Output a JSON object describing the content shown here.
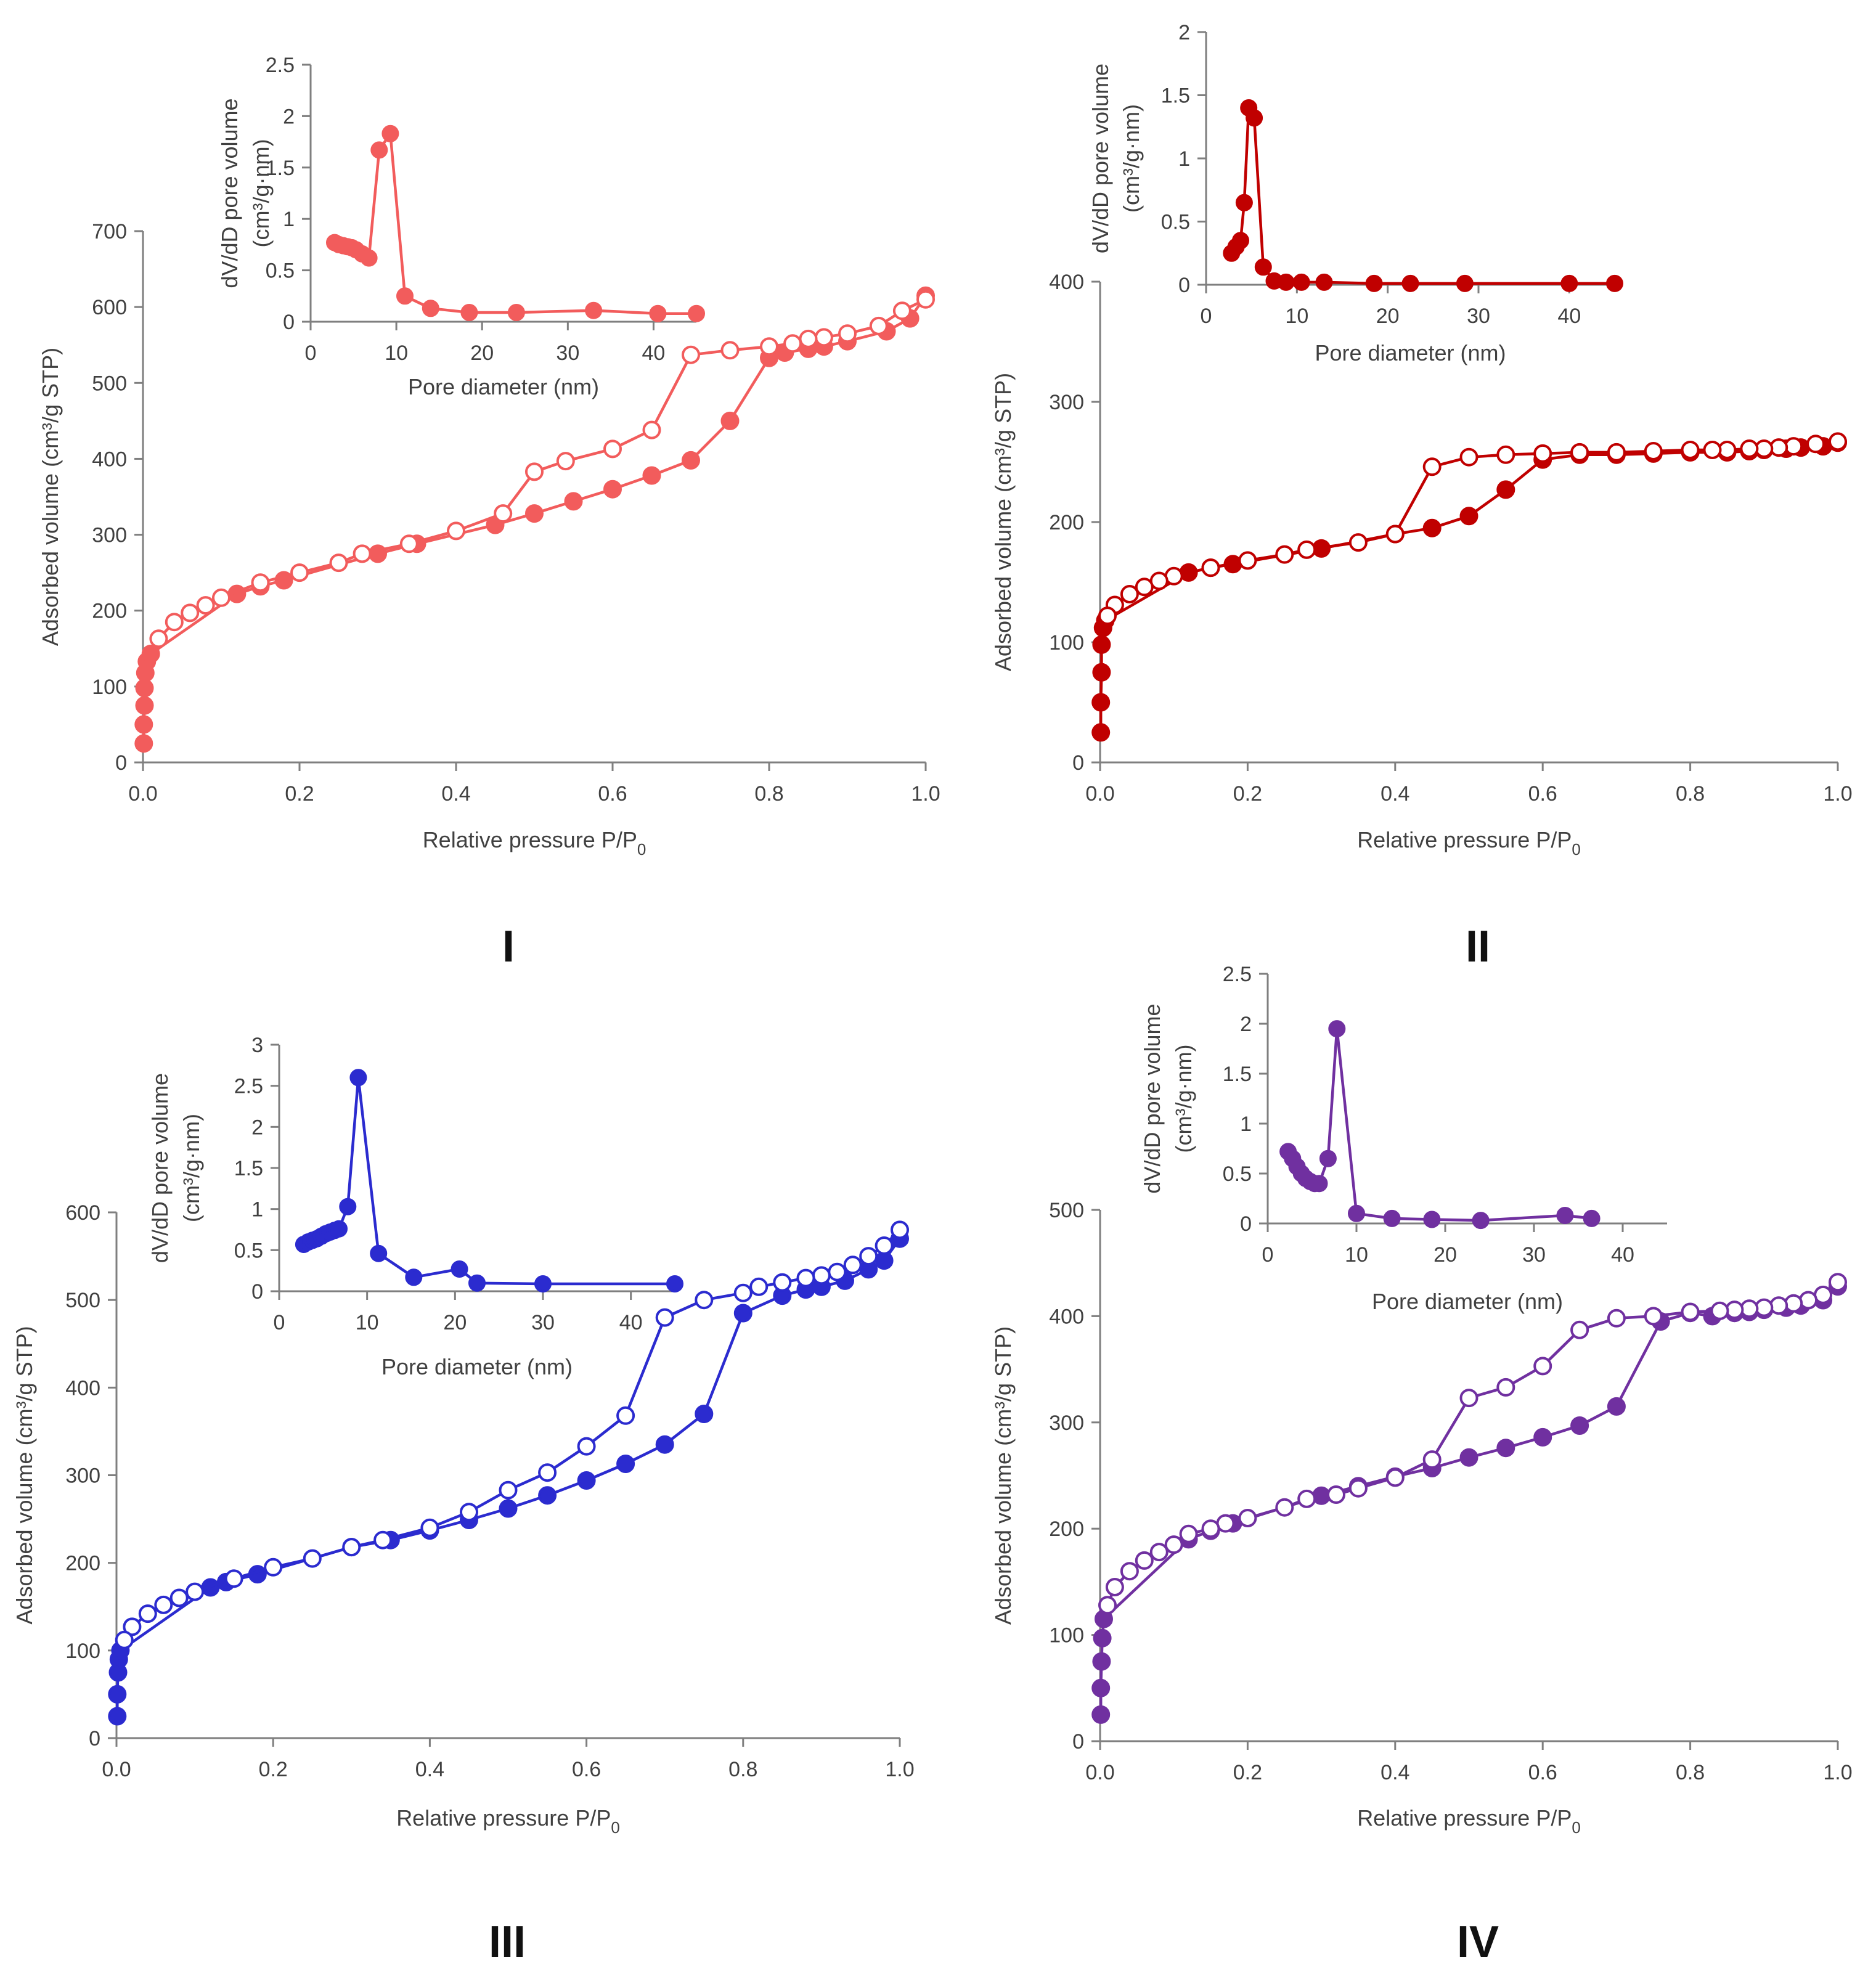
{
  "chart_data": [
    {
      "id": "I",
      "type": "scatter",
      "panel_label": "I",
      "color": "#f25c5c",
      "main": {
        "xlabel": "Relative pressure P/P",
        "xlabel_sub": "0",
        "ylabel": "Adsorbed volume (cm³/g STP)",
        "xlim": [
          0,
          1.0
        ],
        "ylim": [
          0,
          700
        ],
        "xticks": [
          0,
          0.2,
          0.4,
          0.6,
          0.8,
          1.0
        ],
        "xtick_labels": [
          "0.0",
          "0.2",
          "0.4",
          "0.6",
          "0.8",
          "1.0"
        ],
        "yticks": [
          0,
          100,
          200,
          300,
          400,
          500,
          600,
          700
        ],
        "ytick_labels": [
          "0",
          "100",
          "200",
          "300",
          "400",
          "500",
          "600",
          "700"
        ],
        "series": [
          {
            "name": "adsorption",
            "marker": "filled",
            "x": [
              0.001,
              0.001,
              0.002,
              0.002,
              0.003,
              0.005,
              0.01,
              0.12,
              0.15,
              0.18,
              0.3,
              0.35,
              0.45,
              0.5,
              0.55,
              0.6,
              0.65,
              0.7,
              0.75,
              0.8,
              0.82,
              0.85,
              0.87,
              0.9,
              0.95,
              0.98,
              1.0
            ],
            "y": [
              25,
              50,
              75,
              98,
              118,
              133,
              143,
              222,
              232,
              240,
              275,
              288,
              313,
              328,
              344,
              360,
              378,
              398,
              450,
              533,
              540,
              545,
              548,
              555,
              568,
              585,
              615
            ]
          },
          {
            "name": "desorption",
            "marker": "open",
            "x": [
              1.0,
              0.97,
              0.94,
              0.9,
              0.87,
              0.85,
              0.83,
              0.8,
              0.75,
              0.7,
              0.65,
              0.6,
              0.54,
              0.5,
              0.46,
              0.4,
              0.34,
              0.28,
              0.25,
              0.2,
              0.15,
              0.1,
              0.08,
              0.06,
              0.04,
              0.02
            ],
            "y": [
              610,
              595,
              575,
              565,
              560,
              558,
              552,
              548,
              543,
              537,
              438,
              413,
              397,
              383,
              328,
              305,
              288,
              275,
              263,
              250,
              237,
              217,
              207,
              197,
              185,
              163
            ]
          }
        ]
      },
      "inset": {
        "xlabel": "Pore diameter (nm)",
        "ylabel_line1": "dV/dD pore volume",
        "ylabel_line2": "(cm³/g·nm)",
        "xlim": [
          0,
          45
        ],
        "ylim": [
          0,
          2.5
        ],
        "xticks": [
          0,
          10,
          20,
          30,
          40
        ],
        "xtick_labels": [
          "0",
          "10",
          "20",
          "30",
          "40"
        ],
        "yticks": [
          0,
          0.5,
          1,
          1.5,
          2,
          2.5
        ],
        "ytick_labels": [
          "0",
          "0.5",
          "1",
          "1.5",
          "2",
          "2.5"
        ],
        "series": [
          {
            "name": "psd",
            "marker": "filled",
            "x": [
              2.8,
              3.3,
              3.8,
              4.3,
              4.8,
              5.3,
              6.0,
              6.8,
              8.0,
              9.3,
              11.0,
              14.0,
              18.5,
              24.0,
              33.0,
              40.5,
              45.0
            ],
            "y": [
              0.77,
              0.75,
              0.74,
              0.73,
              0.72,
              0.7,
              0.66,
              0.62,
              1.67,
              1.83,
              0.25,
              0.13,
              0.09,
              0.09,
              0.11,
              0.08,
              0.08
            ]
          }
        ]
      }
    },
    {
      "id": "II",
      "type": "scatter",
      "panel_label": "II",
      "color": "#c00000",
      "main": {
        "xlabel": "Relative pressure P/P",
        "xlabel_sub": "0",
        "ylabel": "Adsorbed volume (cm³/g STP)",
        "xlim": [
          0,
          1.0
        ],
        "ylim": [
          0,
          400
        ],
        "xticks": [
          0,
          0.2,
          0.4,
          0.6,
          0.8,
          1.0
        ],
        "xtick_labels": [
          "0.0",
          "0.2",
          "0.4",
          "0.6",
          "0.8",
          "1.0"
        ],
        "yticks": [
          0,
          100,
          200,
          300,
          400
        ],
        "ytick_labels": [
          "0",
          "100",
          "200",
          "300",
          "400"
        ],
        "series": [
          {
            "name": "adsorption",
            "marker": "filled",
            "x": [
              0.001,
              0.001,
              0.002,
              0.002,
              0.004,
              0.007,
              0.12,
              0.15,
              0.18,
              0.3,
              0.4,
              0.45,
              0.5,
              0.55,
              0.6,
              0.65,
              0.7,
              0.75,
              0.8,
              0.85,
              0.88,
              0.9,
              0.93,
              0.95,
              0.98,
              1.0
            ],
            "y": [
              25,
              50,
              75,
              98,
              112,
              118,
              158,
              162,
              165,
              178,
              190,
              195,
              205,
              227,
              252,
              256,
              256,
              257,
              258,
              258,
              259,
              260,
              261,
              262,
              263,
              266
            ]
          },
          {
            "name": "desorption",
            "marker": "open",
            "x": [
              1.0,
              0.97,
              0.94,
              0.92,
              0.9,
              0.88,
              0.85,
              0.83,
              0.8,
              0.75,
              0.7,
              0.65,
              0.6,
              0.55,
              0.5,
              0.45,
              0.4,
              0.35,
              0.28,
              0.25,
              0.2,
              0.15,
              0.1,
              0.08,
              0.06,
              0.04,
              0.02,
              0.01
            ],
            "y": [
              267,
              265,
              263,
              262,
              261,
              261,
              260,
              260,
              260,
              259,
              258,
              258,
              257,
              256,
              254,
              246,
              190,
              183,
              177,
              173,
              168,
              162,
              155,
              151,
              146,
              140,
              131,
              122
            ]
          }
        ]
      },
      "inset": {
        "xlabel": "Pore diameter (nm)",
        "ylabel_line1": "dV/dD pore volume",
        "ylabel_line2": "(cm³/g·nm)",
        "xlim": [
          0,
          45
        ],
        "ylim": [
          0,
          2
        ],
        "xticks": [
          0,
          10,
          20,
          30,
          40
        ],
        "xtick_labels": [
          "0",
          "10",
          "20",
          "30",
          "40"
        ],
        "yticks": [
          0,
          0.5,
          1,
          1.5,
          2
        ],
        "ytick_labels": [
          "0",
          "0.5",
          "1",
          "1.5",
          "2"
        ],
        "series": [
          {
            "name": "psd",
            "marker": "filled",
            "x": [
              2.8,
              3.3,
              3.8,
              4.2,
              4.7,
              5.3,
              6.3,
              7.5,
              8.8,
              10.5,
              13.0,
              18.5,
              22.5,
              28.5,
              40.0,
              45.0
            ],
            "y": [
              0.25,
              0.3,
              0.35,
              0.65,
              1.4,
              1.32,
              0.14,
              0.03,
              0.02,
              0.02,
              0.02,
              0.01,
              0.01,
              0.01,
              0.01,
              0.01
            ]
          }
        ]
      }
    },
    {
      "id": "III",
      "type": "scatter",
      "panel_label": "III",
      "color": "#2b2bcf",
      "main": {
        "xlabel": "Relative pressure P/P",
        "xlabel_sub": "0",
        "ylabel": "Adsorbed volume (cm³/g STP)",
        "xlim": [
          0,
          1.0
        ],
        "ylim": [
          0,
          600
        ],
        "xticks": [
          0,
          0.2,
          0.4,
          0.6,
          0.8,
          1.0
        ],
        "xtick_labels": [
          "0.0",
          "0.2",
          "0.4",
          "0.6",
          "0.8",
          "1.0"
        ],
        "yticks": [
          0,
          100,
          200,
          300,
          400,
          500,
          600
        ],
        "ytick_labels": [
          "0",
          "100",
          "200",
          "300",
          "400",
          "500",
          "600"
        ],
        "series": [
          {
            "name": "adsorption",
            "marker": "filled",
            "x": [
              0.001,
              0.001,
              0.002,
              0.003,
              0.005,
              0.12,
              0.14,
              0.18,
              0.3,
              0.35,
              0.4,
              0.45,
              0.5,
              0.55,
              0.6,
              0.65,
              0.7,
              0.75,
              0.8,
              0.85,
              0.88,
              0.9,
              0.93,
              0.96,
              0.98,
              1.0
            ],
            "y": [
              25,
              50,
              75,
              90,
              100,
              172,
              178,
              187,
              218,
              226,
              237,
              249,
              262,
              277,
              294,
              313,
              335,
              370,
              485,
              505,
              512,
              515,
              522,
              535,
              545,
              570
            ]
          },
          {
            "name": "desorption",
            "marker": "open",
            "x": [
              1.0,
              0.98,
              0.96,
              0.94,
              0.92,
              0.9,
              0.88,
              0.85,
              0.82,
              0.8,
              0.75,
              0.7,
              0.65,
              0.6,
              0.55,
              0.5,
              0.45,
              0.4,
              0.34,
              0.3,
              0.25,
              0.2,
              0.15,
              0.1,
              0.08,
              0.06,
              0.04,
              0.02,
              0.01
            ],
            "y": [
              580,
              562,
              550,
              540,
              532,
              528,
              525,
              520,
              515,
              508,
              500,
              480,
              368,
              333,
              303,
              283,
              258,
              240,
              226,
              218,
              205,
              195,
              182,
              167,
              160,
              152,
              142,
              127,
              112
            ]
          }
        ]
      },
      "inset": {
        "xlabel": "Pore diameter (nm)",
        "ylabel_line1": "dV/dD pore volume",
        "ylabel_line2": "(cm³/g·nm)",
        "xlim": [
          0,
          45
        ],
        "ylim": [
          0,
          3
        ],
        "xticks": [
          0,
          10,
          20,
          30,
          40
        ],
        "xtick_labels": [
          "0",
          "10",
          "20",
          "30",
          "40"
        ],
        "yticks": [
          0,
          0.5,
          1,
          1.5,
          2,
          2.5,
          3
        ],
        "ytick_labels": [
          "0",
          "0.5",
          "1",
          "1.5",
          "2",
          "2.5",
          "3"
        ],
        "series": [
          {
            "name": "psd",
            "marker": "filled",
            "x": [
              2.8,
              3.3,
              3.8,
              4.3,
              4.8,
              5.3,
              5.8,
              6.3,
              6.8,
              7.8,
              9.0,
              11.3,
              15.3,
              20.5,
              22.5,
              30.0,
              45.0
            ],
            "y": [
              0.57,
              0.6,
              0.62,
              0.64,
              0.67,
              0.7,
              0.72,
              0.74,
              0.76,
              1.03,
              2.6,
              0.46,
              0.17,
              0.27,
              0.1,
              0.09,
              0.09
            ]
          }
        ]
      }
    },
    {
      "id": "IV",
      "type": "scatter",
      "panel_label": "IV",
      "color": "#7030a0",
      "main": {
        "xlabel": "Relative pressure P/P",
        "xlabel_sub": "0",
        "ylabel": "Adsorbed volume (cm³/g STP)",
        "xlim": [
          0,
          1.0
        ],
        "ylim": [
          0,
          500
        ],
        "xticks": [
          0,
          0.2,
          0.4,
          0.6,
          0.8,
          1.0
        ],
        "xtick_labels": [
          "0.0",
          "0.2",
          "0.4",
          "0.6",
          "0.8",
          "1.0"
        ],
        "yticks": [
          0,
          100,
          200,
          300,
          400,
          500
        ],
        "ytick_labels": [
          "0",
          "100",
          "200",
          "300",
          "400",
          "500"
        ],
        "series": [
          {
            "name": "adsorption",
            "marker": "filled",
            "x": [
              0.001,
              0.001,
              0.002,
              0.003,
              0.005,
              0.12,
              0.15,
              0.18,
              0.3,
              0.35,
              0.4,
              0.45,
              0.5,
              0.55,
              0.6,
              0.65,
              0.7,
              0.76,
              0.8,
              0.83,
              0.86,
              0.88,
              0.9,
              0.93,
              0.95,
              0.98,
              1.0
            ],
            "y": [
              25,
              50,
              75,
              97,
              115,
              190,
              198,
              205,
              231,
              240,
              249,
              257,
              267,
              276,
              286,
              297,
              315,
              395,
              403,
              400,
              403,
              404,
              406,
              408,
              410,
              415,
              428
            ]
          },
          {
            "name": "desorption",
            "marker": "open",
            "x": [
              1.0,
              0.98,
              0.96,
              0.94,
              0.92,
              0.9,
              0.88,
              0.86,
              0.84,
              0.8,
              0.75,
              0.7,
              0.65,
              0.6,
              0.55,
              0.5,
              0.45,
              0.4,
              0.35,
              0.32,
              0.28,
              0.25,
              0.2,
              0.17,
              0.15,
              0.12,
              0.1,
              0.08,
              0.06,
              0.04,
              0.02,
              0.01
            ],
            "y": [
              432,
              420,
              415,
              412,
              410,
              408,
              407,
              406,
              405,
              404,
              400,
              398,
              387,
              353,
              333,
              323,
              265,
              248,
              238,
              232,
              228,
              220,
              210,
              205,
              200,
              195,
              185,
              178,
              170,
              160,
              145,
              128
            ]
          }
        ]
      },
      "inset": {
        "xlabel": "Pore diameter (nm)",
        "ylabel_line1": "dV/dD pore volume",
        "ylabel_line2": "(cm³/g·nm)",
        "xlim": [
          0,
          45
        ],
        "ylim": [
          0,
          2.5
        ],
        "xticks": [
          0,
          10,
          20,
          30,
          40
        ],
        "xtick_labels": [
          "0",
          "10",
          "20",
          "30",
          "40"
        ],
        "yticks": [
          0,
          0.5,
          1,
          1.5,
          2,
          2.5
        ],
        "ytick_labels": [
          "0",
          "0.5",
          "1",
          "1.5",
          "2",
          "2.5"
        ],
        "series": [
          {
            "name": "psd",
            "marker": "filled",
            "x": [
              2.3,
              2.8,
              3.3,
              3.8,
              4.3,
              4.8,
              5.3,
              5.8,
              6.8,
              7.8,
              10.0,
              14.0,
              18.5,
              24.0,
              33.5,
              36.5
            ],
            "y": [
              0.72,
              0.65,
              0.57,
              0.5,
              0.45,
              0.42,
              0.4,
              0.4,
              0.65,
              1.95,
              0.1,
              0.05,
              0.04,
              0.03,
              0.08,
              0.05
            ]
          }
        ]
      }
    }
  ]
}
